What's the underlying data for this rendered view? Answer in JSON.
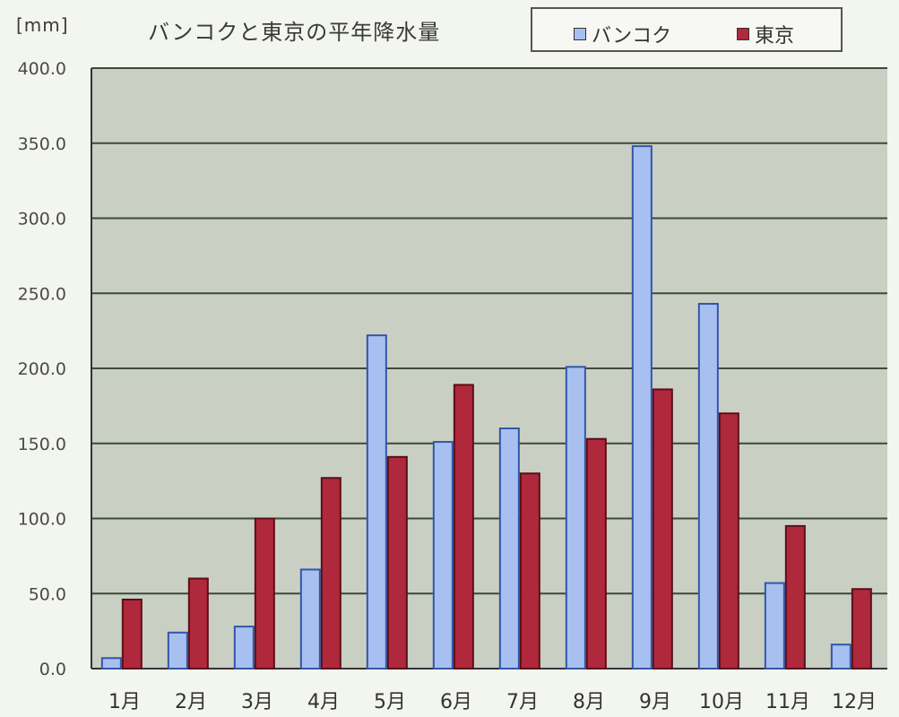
{
  "colors": {
    "bangkok": "#a8c0f0",
    "tokyo": "#b0283c",
    "plot_bg": "#c9d0c3",
    "grid": "#3b4a3b"
  },
  "chart_data": {
    "type": "bar",
    "title": "バンコクと東京の平年降水量",
    "ylabel": "[mm]",
    "xlabel": "",
    "categories": [
      "1月",
      "2月",
      "3月",
      "4月",
      "5月",
      "6月",
      "7月",
      "8月",
      "9月",
      "10月",
      "11月",
      "12月"
    ],
    "series": [
      {
        "name": "バンコク",
        "values": [
          7,
          24,
          28,
          66,
          222,
          151,
          160,
          201,
          348,
          243,
          57,
          16
        ]
      },
      {
        "name": "東京",
        "values": [
          46,
          60,
          100,
          127,
          141,
          189,
          130,
          153,
          186,
          170,
          95,
          53
        ]
      }
    ],
    "ylim": [
      0,
      400
    ],
    "yticks": [
      "0.0",
      "50.0",
      "100.0",
      "150.0",
      "200.0",
      "250.0",
      "300.0",
      "350.0",
      "400.0"
    ],
    "grid": true,
    "legend_position": "top-right"
  }
}
